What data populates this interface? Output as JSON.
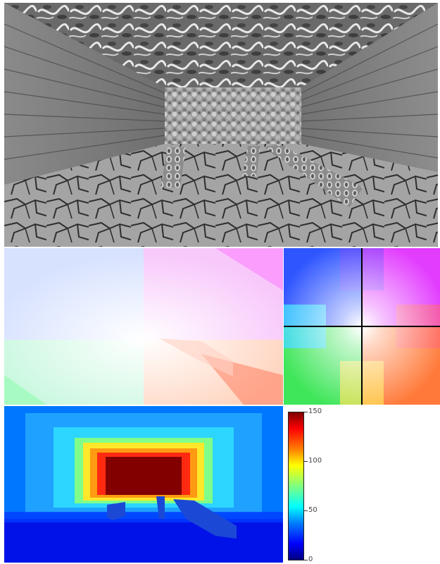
{
  "panels": [
    {
      "name": "rendered-scene",
      "kind": "grayscale corridor render"
    },
    {
      "name": "optical-flow",
      "kind": "flow visualization"
    },
    {
      "name": "flow-color-wheel",
      "kind": "color key"
    },
    {
      "name": "depth-map",
      "kind": "jet colormap depth"
    }
  ],
  "colorbar": {
    "ticks": [
      "150",
      "100",
      "50",
      "0"
    ],
    "tick_values": [
      150,
      100,
      50,
      0
    ],
    "range": [
      0,
      150
    ],
    "colormap": "jet"
  }
}
